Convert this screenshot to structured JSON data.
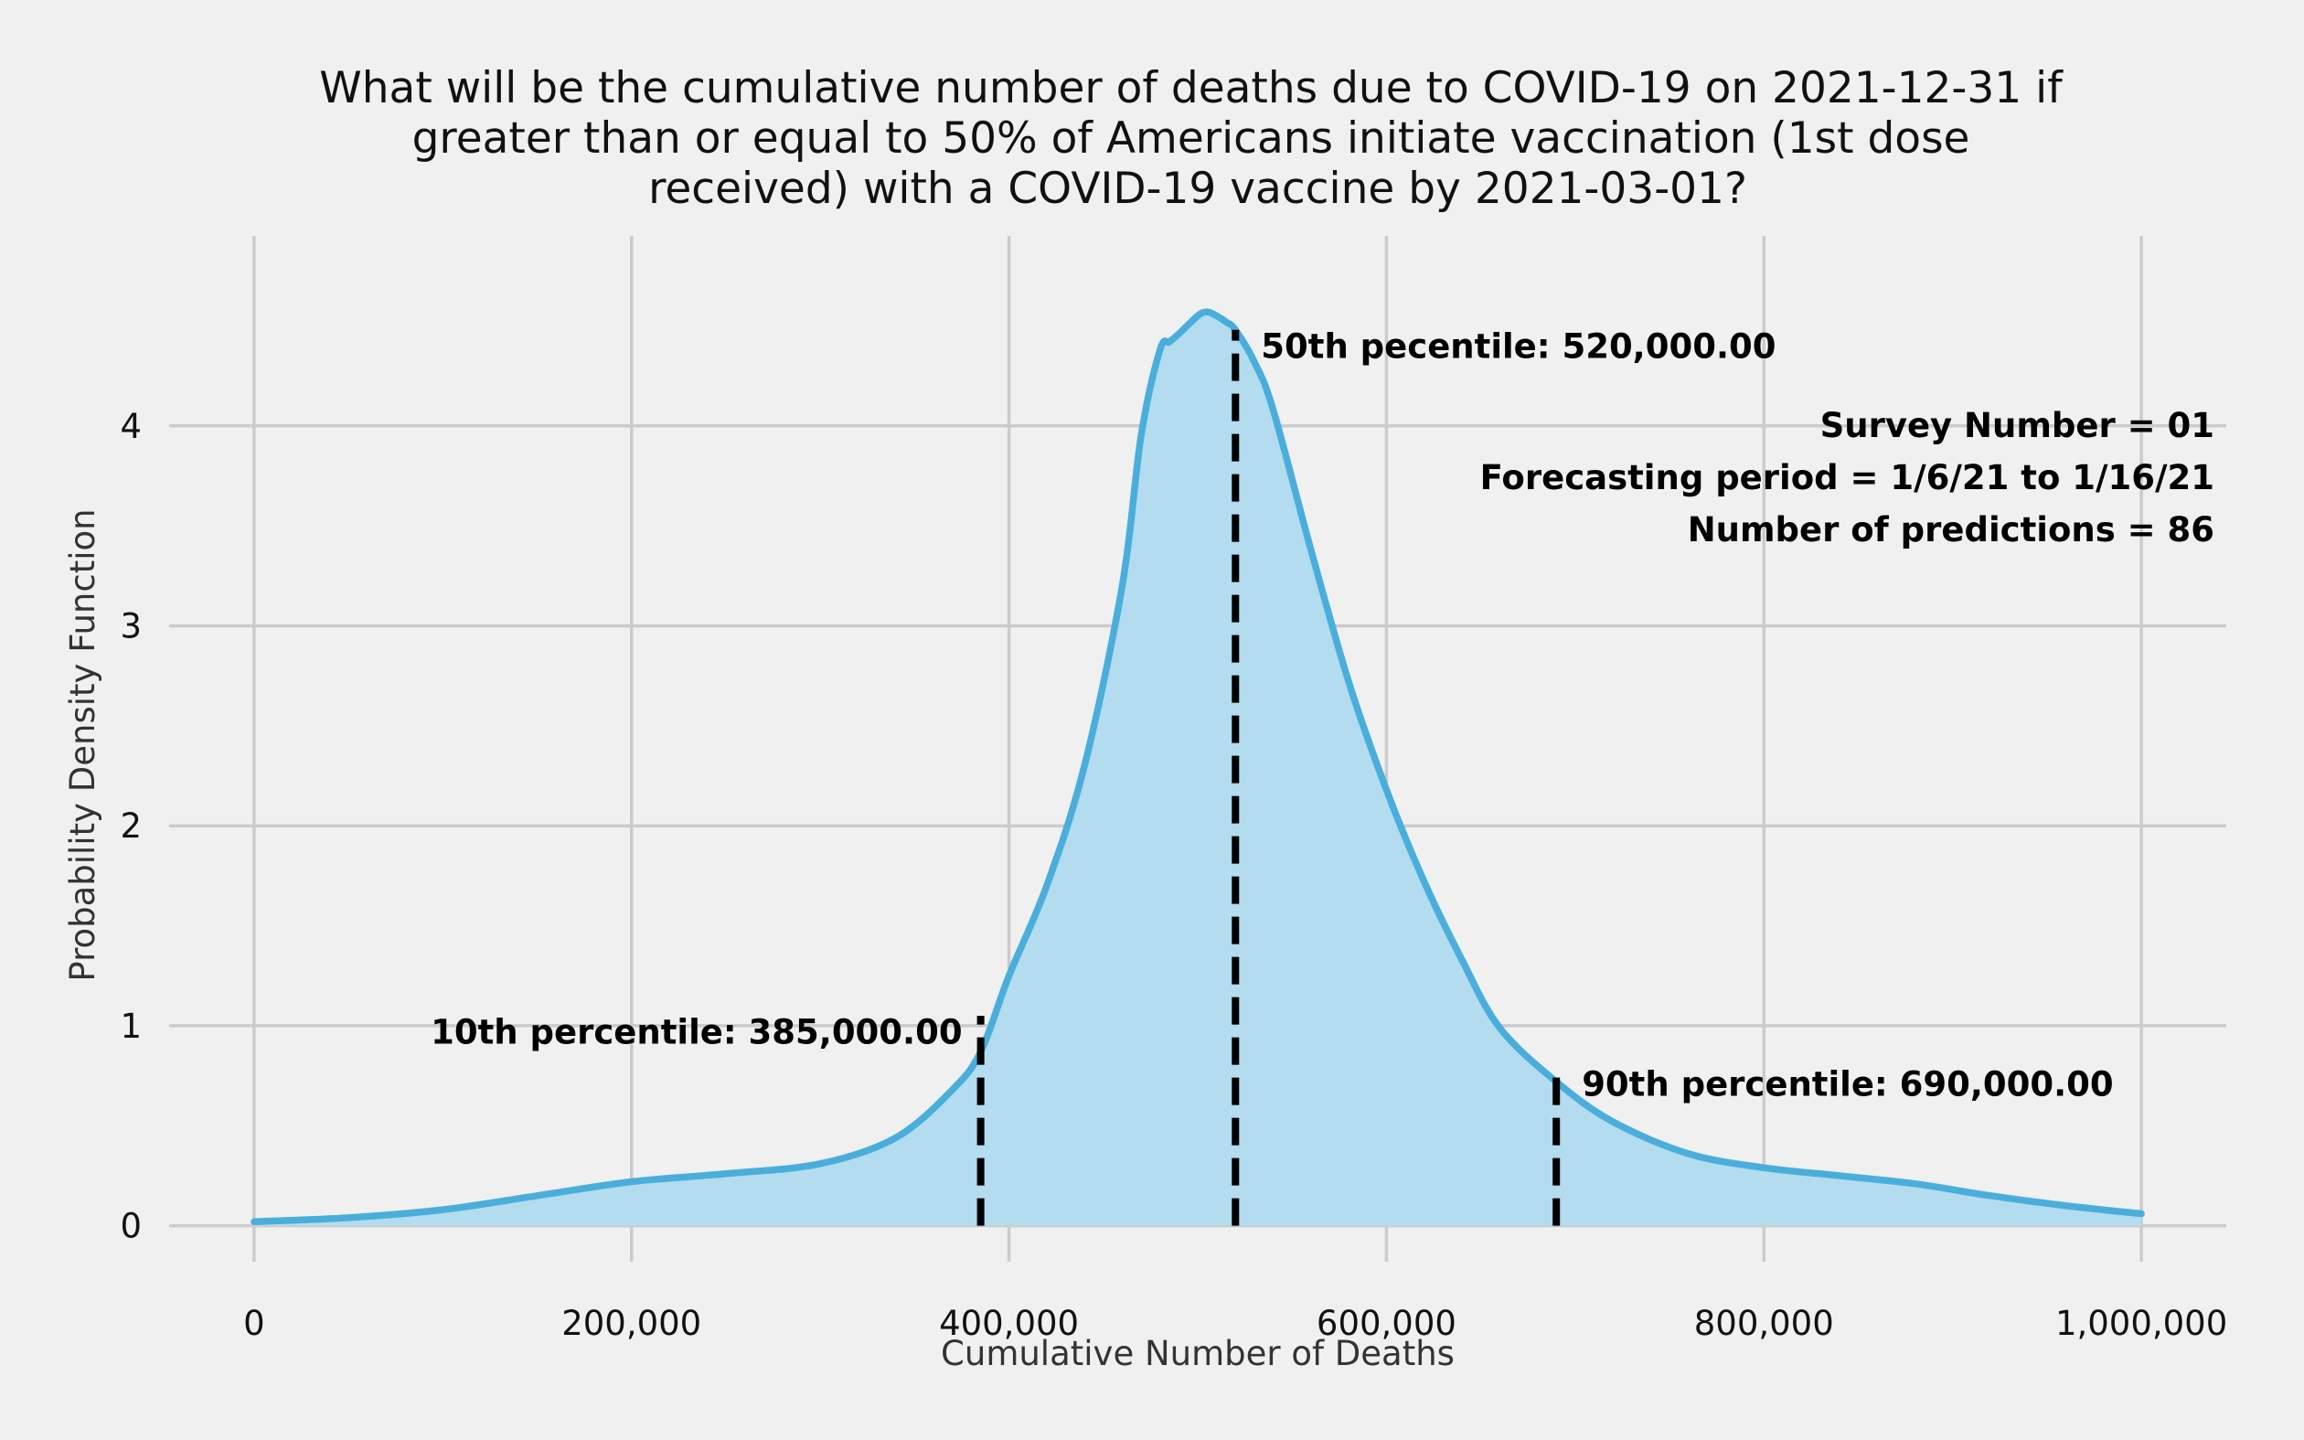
{
  "chart_data": {
    "type": "area",
    "title_lines": [
      "What will be the cumulative number of deaths due to COVID-19 on 2021-12-31 if",
      "greater than or equal to 50% of Americans initiate vaccination (1st dose",
      "received) with a COVID-19 vaccine by 2021-03-01?"
    ],
    "xlabel": "Cumulative Number of Deaths",
    "ylabel": "Probability Density Function",
    "xlim": [
      -45000,
      1045000
    ],
    "ylim": [
      -0.18,
      4.95
    ],
    "x_ticks": [
      0,
      200000,
      400000,
      600000,
      800000,
      1000000
    ],
    "x_tick_labels": [
      "0",
      "200,000",
      "400,000",
      "600,000",
      "800,000",
      "1,000,000"
    ],
    "y_ticks": [
      0,
      1,
      2,
      3,
      4
    ],
    "y_tick_labels": [
      "0",
      "1",
      "2",
      "3",
      "4"
    ],
    "grid": true,
    "series": [
      {
        "x": [
          0,
          50000,
          100000,
          150000,
          200000,
          250000,
          300000,
          340000,
          370000,
          385000,
          400000,
          420000,
          440000,
          460000,
          470000,
          480000,
          485000,
          490000,
          500000,
          505000,
          510000,
          515000,
          520000,
          530000,
          540000,
          560000,
          580000,
          600000,
          620000,
          640000,
          660000,
          690000,
          720000,
          760000,
          800000,
          840000,
          880000,
          920000,
          960000,
          1000000
        ],
        "y": [
          0.02,
          0.04,
          0.08,
          0.15,
          0.22,
          0.26,
          0.31,
          0.44,
          0.68,
          0.87,
          1.25,
          1.7,
          2.3,
          3.2,
          3.95,
          4.38,
          4.42,
          4.46,
          4.55,
          4.57,
          4.55,
          4.52,
          4.48,
          4.32,
          4.08,
          3.38,
          2.72,
          2.18,
          1.72,
          1.33,
          0.99,
          0.72,
          0.52,
          0.36,
          0.29,
          0.25,
          0.21,
          0.15,
          0.1,
          0.06
        ]
      }
    ],
    "percentiles": [
      {
        "x": 385000,
        "y": 1.05,
        "label": "10th percentile: 385,000.00",
        "label_side": "left",
        "label_y": 0.97
      },
      {
        "x": 520000,
        "y": 4.48,
        "label": "50th pecentile: 520,000.00",
        "label_side": "right",
        "label_y": 4.4
      },
      {
        "x": 690000,
        "y": 0.78,
        "label": "90th percentile: 690,000.00",
        "label_side": "right",
        "label_y": 0.71
      }
    ],
    "info_lines": [
      "Survey Number = 01",
      "Forecasting period = 1/6/21 to 1/16/21",
      "Number of predictions = 86"
    ],
    "colors": {
      "background": "#f0f0f0",
      "grid": "#cbcbcb",
      "line": "#4aaedc",
      "fill": "#b3dcee",
      "percentile_line": "#000000"
    }
  }
}
